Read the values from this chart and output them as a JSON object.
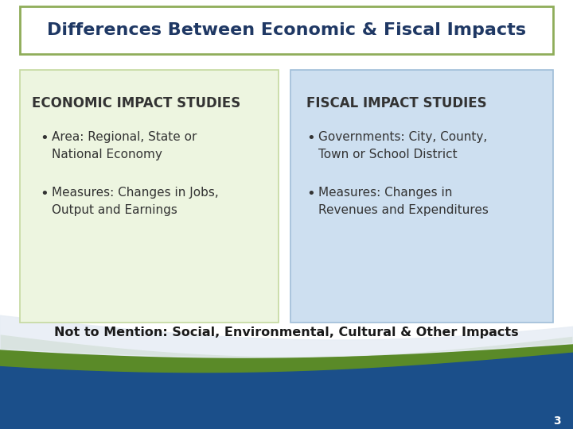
{
  "title": "Differences Between Economic & Fiscal Impacts",
  "title_color": "#1F3864",
  "title_border_color": "#8FAD5A",
  "bg_color": "#FFFFFF",
  "left_box_bg": "#EDF5E0",
  "left_box_border": "#C5D9A0",
  "right_box_bg": "#CDDFF0",
  "right_box_border": "#A0BED8",
  "left_title": "ECONOMIC IMPACT STUDIES",
  "right_title": "FISCAL IMPACT STUDIES",
  "left_bullets": [
    "Area: Regional, State or\nNational Economy",
    "Measures: Changes in Jobs,\nOutput and Earnings"
  ],
  "right_bullets": [
    "Governments: City, County,\nTown or School District",
    "Measures: Changes in\nRevenues and Expenditures"
  ],
  "footer_text": "Not to Mention: Social, Environmental, Cultural & Other Impacts",
  "footer_color": "#1A1A1A",
  "page_number": "3",
  "wave_green": "#5A8A28",
  "wave_blue": "#1B4F8A",
  "wave_light": "#D0DCE8",
  "text_color": "#333333"
}
